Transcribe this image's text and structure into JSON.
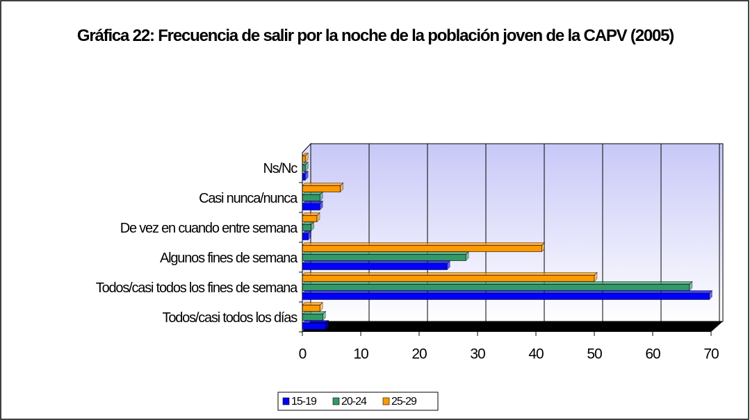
{
  "chart_data": {
    "type": "bar",
    "orientation": "horizontal",
    "title": "Gráfica 22: Frecuencia de salir por la noche de la población joven de la CAPV (2005)",
    "categories": [
      "Todos/casi todos los días",
      "Todos/casi todos los fines de semana",
      "Algunos fines de semana",
      "De vez en cuando entre semana",
      "Casi nunca/nunca",
      "Ns/Nc"
    ],
    "series": [
      {
        "name": "15-19",
        "color": "#0000ff",
        "values": [
          4,
          69.7,
          24.8,
          1,
          3,
          0.5
        ]
      },
      {
        "name": "20-24",
        "color": "#339966",
        "values": [
          3.5,
          66.3,
          28,
          1.5,
          3,
          0.5
        ]
      },
      {
        "name": "25-29",
        "color": "#ff9900",
        "values": [
          3,
          50,
          41,
          2.5,
          6.5,
          0.5
        ]
      }
    ],
    "xlim": [
      0,
      70
    ],
    "xticks": [
      0,
      10,
      20,
      30,
      40,
      50,
      60,
      70
    ],
    "grid": true,
    "legend": "bottom"
  }
}
